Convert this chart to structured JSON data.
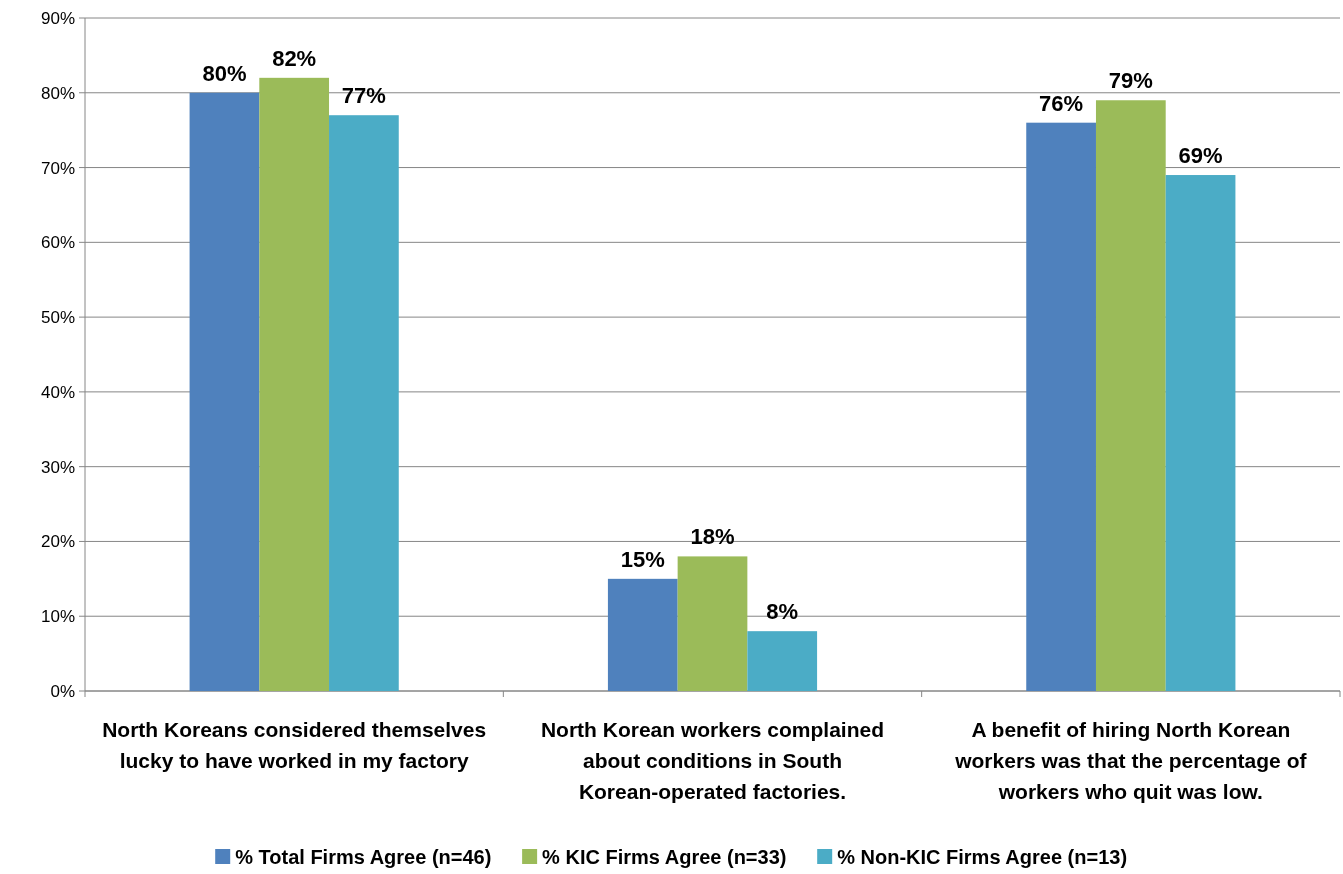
{
  "chart_data": {
    "type": "bar",
    "categories": [
      "North Koreans considered themselves lucky to have worked in my factory",
      "North Korean workers complained about conditions in South Korean-operated factories.",
      "A benefit of hiring North Korean workers was that the percentage of workers who quit was low."
    ],
    "series": [
      {
        "name": "% Total Firms Agree (n=46)",
        "color": "#4f81bd",
        "values": [
          80,
          15,
          76
        ],
        "value_labels": [
          "80%",
          "15%",
          "76%"
        ]
      },
      {
        "name": "% KIC Firms Agree (n=33)",
        "color": "#9bbb59",
        "values": [
          82,
          18,
          79
        ],
        "value_labels": [
          "82%",
          "18%",
          "79%"
        ]
      },
      {
        "name": "% Non-KIC Firms Agree (n=13)",
        "color": "#4bacc6",
        "values": [
          77,
          8,
          69
        ],
        "value_labels": [
          "77%",
          "8%",
          "69%"
        ]
      }
    ],
    "ylim": [
      0,
      90
    ],
    "yticks": [
      {
        "value": 0,
        "label": "0%"
      },
      {
        "value": 10,
        "label": "10%"
      },
      {
        "value": 20,
        "label": "20%"
      },
      {
        "value": 30,
        "label": "30%"
      },
      {
        "value": 40,
        "label": "40%"
      },
      {
        "value": 50,
        "label": "50%"
      },
      {
        "value": 60,
        "label": "60%"
      },
      {
        "value": 70,
        "label": "70%"
      },
      {
        "value": 80,
        "label": "80%"
      },
      {
        "value": 90,
        "label": "90%"
      }
    ],
    "grid": "y",
    "legend": "bottom"
  }
}
